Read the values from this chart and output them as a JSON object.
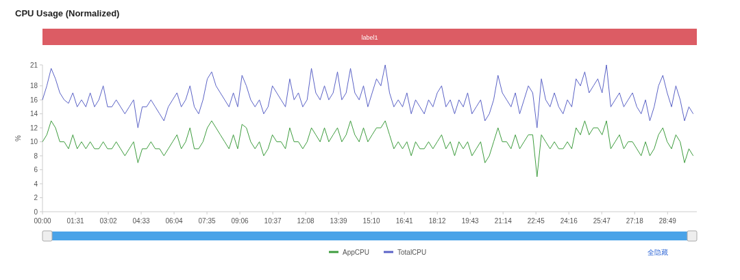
{
  "chart_data": {
    "type": "line",
    "title": "CPU Usage (Normalized)",
    "ylabel": "%",
    "x": [
      0,
      12,
      24,
      36,
      48,
      60,
      72,
      84,
      96,
      108,
      120,
      132,
      144,
      156,
      168,
      180,
      192,
      204,
      216,
      228,
      240,
      252,
      264,
      276,
      288,
      300,
      312,
      324,
      336,
      348,
      360,
      372,
      384,
      396,
      408,
      420,
      432,
      444,
      456,
      468,
      480,
      492,
      504,
      516,
      528,
      540,
      552,
      564,
      576,
      588,
      600,
      612,
      624,
      636,
      648,
      660,
      672,
      684,
      696,
      708,
      720,
      732,
      744,
      756,
      768,
      780,
      792,
      804,
      816,
      828,
      840,
      852,
      864,
      876,
      888,
      900,
      912,
      924,
      936,
      948,
      960,
      972,
      984,
      996,
      1008,
      1020,
      1032,
      1044,
      1056,
      1068,
      1080,
      1092,
      1104,
      1116,
      1128,
      1140,
      1152,
      1164,
      1176,
      1188,
      1200,
      1212,
      1224,
      1236,
      1248,
      1260,
      1272,
      1284,
      1296,
      1308,
      1320,
      1332,
      1344,
      1356,
      1368,
      1380,
      1392,
      1404,
      1416,
      1428,
      1440,
      1452,
      1464,
      1476,
      1488,
      1500,
      1512,
      1524,
      1536,
      1548,
      1560,
      1572,
      1584,
      1596,
      1608,
      1620,
      1632,
      1644,
      1656,
      1668,
      1680,
      1692,
      1704,
      1716,
      1728,
      1740,
      1752,
      1764,
      1776,
      1788,
      1800
    ],
    "series": [
      {
        "name": "AppCPU",
        "color": "#3d9c3d",
        "values": [
          10,
          11,
          13,
          12,
          10,
          10,
          9,
          11,
          9,
          10,
          9,
          10,
          9,
          9,
          10,
          9,
          9,
          10,
          9,
          8,
          9,
          10,
          7,
          9,
          9,
          10,
          9,
          9,
          8,
          9,
          10,
          11,
          9,
          10,
          12,
          9,
          9,
          10,
          12,
          13,
          12,
          11,
          10,
          9,
          11,
          9,
          12.5,
          12,
          10,
          9,
          10,
          8,
          9,
          11,
          10,
          10,
          9,
          12,
          10,
          10,
          9,
          10,
          12,
          11,
          10,
          12,
          10,
          11,
          12,
          10,
          11,
          13,
          11,
          10,
          12,
          10,
          11,
          12,
          12,
          13,
          11,
          9,
          10,
          9,
          10,
          8,
          10,
          9,
          9,
          10,
          9,
          10,
          11,
          9,
          10,
          8,
          10,
          9,
          10,
          8,
          9,
          10,
          7,
          8,
          10,
          12,
          10,
          10,
          9,
          11,
          9,
          10,
          11,
          11,
          5,
          11,
          10,
          9,
          10,
          9,
          9,
          10,
          9,
          12,
          11,
          13,
          11,
          12,
          12,
          11,
          13,
          9,
          10,
          11,
          9,
          10,
          10,
          9,
          8,
          10,
          8,
          9,
          11,
          12,
          10,
          9,
          11,
          10,
          7,
          9,
          8
        ]
      },
      {
        "name": "TotalCPU",
        "color": "#5a62c6",
        "values": [
          16,
          18,
          20.5,
          19,
          17,
          16,
          15.5,
          17,
          15,
          16,
          15,
          17,
          15,
          16,
          18,
          15,
          15,
          16,
          15,
          14,
          15,
          16,
          12,
          15,
          15,
          16,
          15,
          14,
          13,
          15,
          16,
          17,
          15,
          16,
          18,
          15,
          14,
          16,
          19,
          20,
          18,
          17,
          16,
          15,
          17,
          15,
          19.5,
          18,
          16,
          15,
          16,
          14,
          15,
          18,
          17,
          16,
          15,
          19,
          16,
          17,
          15,
          16,
          20.5,
          17,
          16,
          18,
          16,
          17,
          20,
          16,
          17,
          20.5,
          17,
          16,
          18,
          15,
          17,
          19,
          18,
          21,
          17,
          15,
          16,
          15,
          17,
          14,
          16,
          15,
          14,
          16,
          15,
          17,
          18,
          15,
          16,
          14,
          16,
          15,
          17,
          14,
          15,
          16,
          13,
          14,
          16,
          19.5,
          17,
          16,
          15,
          17,
          14,
          16,
          18,
          17,
          12,
          19,
          16,
          15,
          17,
          15,
          14,
          16,
          15,
          19,
          18,
          20,
          17,
          18,
          19,
          17,
          21,
          15,
          16,
          17,
          15,
          16,
          17,
          15,
          14,
          16,
          13,
          15,
          18,
          19.5,
          17,
          15,
          18,
          16,
          13,
          15,
          14
        ]
      }
    ],
    "xlim": [
      0,
      1810
    ],
    "xticks": [
      {
        "value": 0,
        "label": "00:00"
      },
      {
        "value": 91,
        "label": "01:31"
      },
      {
        "value": 182,
        "label": "03:02"
      },
      {
        "value": 273,
        "label": "04:33"
      },
      {
        "value": 364,
        "label": "06:04"
      },
      {
        "value": 455,
        "label": "07:35"
      },
      {
        "value": 546,
        "label": "09:06"
      },
      {
        "value": 637,
        "label": "10:37"
      },
      {
        "value": 728,
        "label": "12:08"
      },
      {
        "value": 819,
        "label": "13:39"
      },
      {
        "value": 910,
        "label": "15:10"
      },
      {
        "value": 1001,
        "label": "16:41"
      },
      {
        "value": 1092,
        "label": "18:12"
      },
      {
        "value": 1183,
        "label": "19:43"
      },
      {
        "value": 1274,
        "label": "21:14"
      },
      {
        "value": 1365,
        "label": "22:45"
      },
      {
        "value": 1456,
        "label": "24:16"
      },
      {
        "value": 1547,
        "label": "25:47"
      },
      {
        "value": 1638,
        "label": "27:18"
      },
      {
        "value": 1729,
        "label": "28:49"
      }
    ],
    "ylim": [
      0,
      21
    ],
    "yticks": [
      0,
      2,
      4,
      6,
      8,
      10,
      12,
      14,
      16,
      18,
      21
    ],
    "annotations": [
      "label1",
      "全隐藏"
    ],
    "legend": "bottom",
    "grid": false,
    "marker": "none"
  }
}
